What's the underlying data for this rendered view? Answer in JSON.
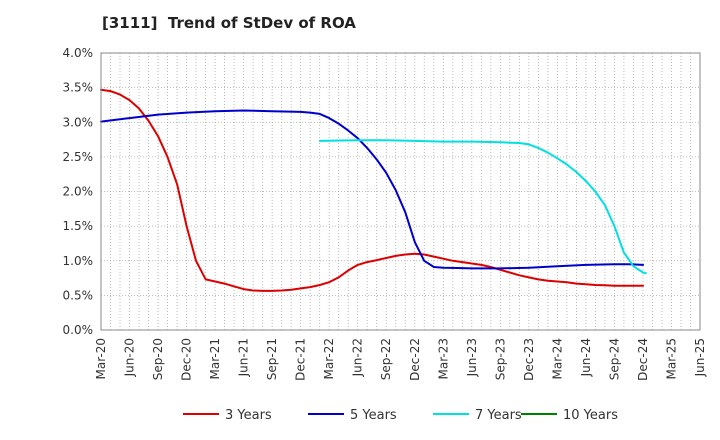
{
  "chart_data": {
    "type": "line",
    "title": "[3111]  Trend of StDev of ROA",
    "xlabel": "",
    "ylabel": "",
    "x_tick_labels": [
      "Mar-20",
      "Jun-20",
      "Sep-20",
      "Dec-20",
      "Mar-21",
      "Jun-21",
      "Sep-21",
      "Dec-21",
      "Mar-22",
      "Jun-22",
      "Sep-22",
      "Dec-22",
      "Mar-23",
      "Jun-23",
      "Sep-23",
      "Dec-23",
      "Mar-24",
      "Jun-24",
      "Sep-24",
      "Dec-24",
      "Mar-25",
      "Jun-25"
    ],
    "y_tick_labels": [
      "0.0%",
      "0.5%",
      "1.0%",
      "1.5%",
      "2.0%",
      "2.5%",
      "3.0%",
      "3.5%",
      "4.0%"
    ],
    "ylim": [
      0,
      4.0
    ],
    "grid": true,
    "legend_position": "bottom",
    "series": [
      {
        "name": "3 Years",
        "color": "#dd0000",
        "points": [
          [
            0,
            3.47
          ],
          [
            0.33,
            3.45
          ],
          [
            0.67,
            3.4
          ],
          [
            1,
            3.32
          ],
          [
            1.33,
            3.2
          ],
          [
            1.67,
            3.02
          ],
          [
            2,
            2.8
          ],
          [
            2.33,
            2.5
          ],
          [
            2.67,
            2.1
          ],
          [
            3,
            1.5
          ],
          [
            3.33,
            1.0
          ],
          [
            3.67,
            0.73
          ],
          [
            4,
            0.7
          ],
          [
            4.33,
            0.67
          ],
          [
            4.67,
            0.63
          ],
          [
            5,
            0.59
          ],
          [
            5.33,
            0.57
          ],
          [
            5.67,
            0.565
          ],
          [
            6,
            0.565
          ],
          [
            6.33,
            0.57
          ],
          [
            6.67,
            0.58
          ],
          [
            7,
            0.6
          ],
          [
            7.33,
            0.62
          ],
          [
            7.67,
            0.65
          ],
          [
            8,
            0.69
          ],
          [
            8.33,
            0.76
          ],
          [
            8.67,
            0.86
          ],
          [
            9,
            0.94
          ],
          [
            9.33,
            0.98
          ],
          [
            9.67,
            1.01
          ],
          [
            10,
            1.04
          ],
          [
            10.33,
            1.07
          ],
          [
            10.67,
            1.09
          ],
          [
            11,
            1.1
          ],
          [
            11.33,
            1.09
          ],
          [
            11.67,
            1.06
          ],
          [
            12,
            1.03
          ],
          [
            12.33,
            1.0
          ],
          [
            12.67,
            0.98
          ],
          [
            13,
            0.96
          ],
          [
            13.33,
            0.94
          ],
          [
            13.67,
            0.91
          ],
          [
            14,
            0.87
          ],
          [
            14.33,
            0.83
          ],
          [
            14.67,
            0.79
          ],
          [
            15,
            0.76
          ],
          [
            15.33,
            0.73
          ],
          [
            15.67,
            0.71
          ],
          [
            16,
            0.7
          ],
          [
            16.33,
            0.69
          ],
          [
            16.67,
            0.67
          ],
          [
            17,
            0.66
          ],
          [
            17.33,
            0.65
          ],
          [
            17.67,
            0.645
          ],
          [
            18,
            0.64
          ],
          [
            18.33,
            0.64
          ],
          [
            18.67,
            0.64
          ],
          [
            19,
            0.64
          ]
        ]
      },
      {
        "name": "5 Years",
        "color": "#0000cc",
        "points": [
          [
            0,
            3.01
          ],
          [
            1,
            3.06
          ],
          [
            2,
            3.11
          ],
          [
            3,
            3.14
          ],
          [
            4,
            3.16
          ],
          [
            5,
            3.17
          ],
          [
            6,
            3.16
          ],
          [
            7,
            3.15
          ],
          [
            7.33,
            3.14
          ],
          [
            7.67,
            3.12
          ],
          [
            8,
            3.06
          ],
          [
            8.33,
            2.98
          ],
          [
            8.67,
            2.88
          ],
          [
            9,
            2.77
          ],
          [
            9.33,
            2.63
          ],
          [
            9.67,
            2.46
          ],
          [
            10,
            2.27
          ],
          [
            10.33,
            2.02
          ],
          [
            10.67,
            1.7
          ],
          [
            11,
            1.27
          ],
          [
            11.33,
            1.0
          ],
          [
            11.67,
            0.91
          ],
          [
            12,
            0.9
          ],
          [
            12.5,
            0.895
          ],
          [
            13,
            0.89
          ],
          [
            14,
            0.89
          ],
          [
            15,
            0.9
          ],
          [
            16,
            0.92
          ],
          [
            17,
            0.94
          ],
          [
            18,
            0.95
          ],
          [
            18.5,
            0.95
          ],
          [
            19,
            0.94
          ]
        ]
      },
      {
        "name": "7 Years",
        "color": "#00e0e0",
        "points": [
          [
            7.67,
            2.73
          ],
          [
            9,
            2.74
          ],
          [
            10,
            2.74
          ],
          [
            11,
            2.73
          ],
          [
            12,
            2.72
          ],
          [
            13,
            2.72
          ],
          [
            14,
            2.71
          ],
          [
            14.67,
            2.7
          ],
          [
            15,
            2.68
          ],
          [
            15.33,
            2.63
          ],
          [
            15.67,
            2.56
          ],
          [
            16,
            2.48
          ],
          [
            16.33,
            2.39
          ],
          [
            16.67,
            2.28
          ],
          [
            17,
            2.15
          ],
          [
            17.33,
            2.0
          ],
          [
            17.67,
            1.8
          ],
          [
            18,
            1.5
          ],
          [
            18.33,
            1.12
          ],
          [
            18.67,
            0.92
          ],
          [
            19,
            0.83
          ],
          [
            19.1,
            0.82
          ]
        ]
      },
      {
        "name": "10 Years",
        "color": "#008000",
        "points": []
      }
    ]
  }
}
